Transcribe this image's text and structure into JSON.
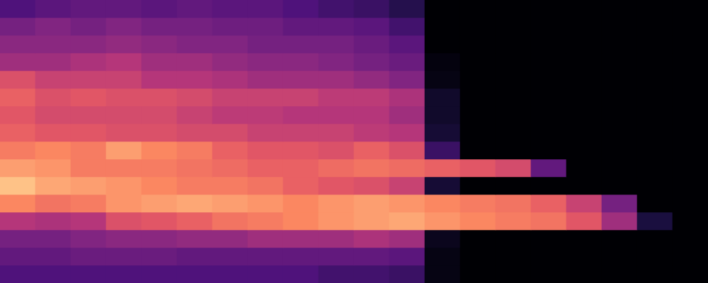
{
  "chart_data": {
    "type": "heatmap",
    "tick_labels": false,
    "grid": false,
    "color_range": [
      0,
      100
    ],
    "cells": [
      [
        25,
        28,
        30,
        30,
        28,
        30,
        28,
        28,
        25,
        22,
        20,
        15,
        0,
        0,
        0,
        0,
        0,
        0,
        0,
        0
      ],
      [
        35,
        38,
        35,
        38,
        35,
        35,
        33,
        33,
        30,
        30,
        28,
        22,
        0,
        0,
        0,
        0,
        0,
        0,
        0,
        0
      ],
      [
        40,
        40,
        40,
        42,
        40,
        38,
        38,
        35,
        35,
        35,
        32,
        28,
        0,
        0,
        0,
        0,
        0,
        0,
        0,
        0
      ],
      [
        45,
        45,
        48,
        50,
        45,
        45,
        42,
        40,
        40,
        38,
        35,
        32,
        2,
        0,
        0,
        0,
        0,
        0,
        0,
        0
      ],
      [
        60,
        55,
        55,
        55,
        50,
        50,
        48,
        45,
        45,
        45,
        42,
        38,
        3,
        0,
        0,
        0,
        0,
        0,
        0,
        0
      ],
      [
        65,
        60,
        62,
        60,
        60,
        58,
        55,
        55,
        55,
        52,
        52,
        48,
        8,
        0,
        0,
        0,
        0,
        0,
        0,
        0
      ],
      [
        62,
        58,
        58,
        58,
        58,
        55,
        52,
        52,
        50,
        50,
        50,
        45,
        8,
        0,
        0,
        0,
        0,
        0,
        0,
        0
      ],
      [
        65,
        62,
        62,
        60,
        60,
        58,
        58,
        55,
        55,
        55,
        52,
        50,
        10,
        0,
        0,
        0,
        0,
        0,
        0,
        0
      ],
      [
        72,
        75,
        72,
        80,
        75,
        72,
        65,
        62,
        62,
        60,
        65,
        60,
        20,
        0,
        0,
        0,
        0,
        0,
        0,
        0
      ],
      [
        80,
        78,
        72,
        72,
        72,
        70,
        68,
        65,
        65,
        68,
        70,
        68,
        65,
        62,
        58,
        30,
        0,
        0,
        0,
        0
      ],
      [
        88,
        82,
        80,
        78,
        75,
        72,
        72,
        70,
        65,
        62,
        60,
        55,
        10,
        0,
        0,
        0,
        0,
        0,
        0,
        0
      ],
      [
        75,
        70,
        72,
        78,
        80,
        82,
        80,
        78,
        75,
        78,
        80,
        78,
        75,
        72,
        70,
        65,
        55,
        35,
        0,
        0
      ],
      [
        50,
        48,
        50,
        60,
        62,
        65,
        70,
        72,
        75,
        78,
        80,
        82,
        78,
        75,
        72,
        70,
        62,
        45,
        12,
        0
      ],
      [
        35,
        35,
        38,
        40,
        40,
        42,
        42,
        45,
        45,
        45,
        48,
        45,
        5,
        0,
        0,
        0,
        0,
        0,
        0,
        0
      ],
      [
        30,
        30,
        32,
        32,
        32,
        30,
        30,
        30,
        30,
        30,
        30,
        28,
        3,
        0,
        0,
        0,
        0,
        0,
        0,
        0
      ],
      [
        25,
        25,
        25,
        25,
        25,
        25,
        25,
        25,
        25,
        22,
        22,
        20,
        3,
        0,
        0,
        0,
        0,
        0,
        0,
        0
      ]
    ]
  }
}
